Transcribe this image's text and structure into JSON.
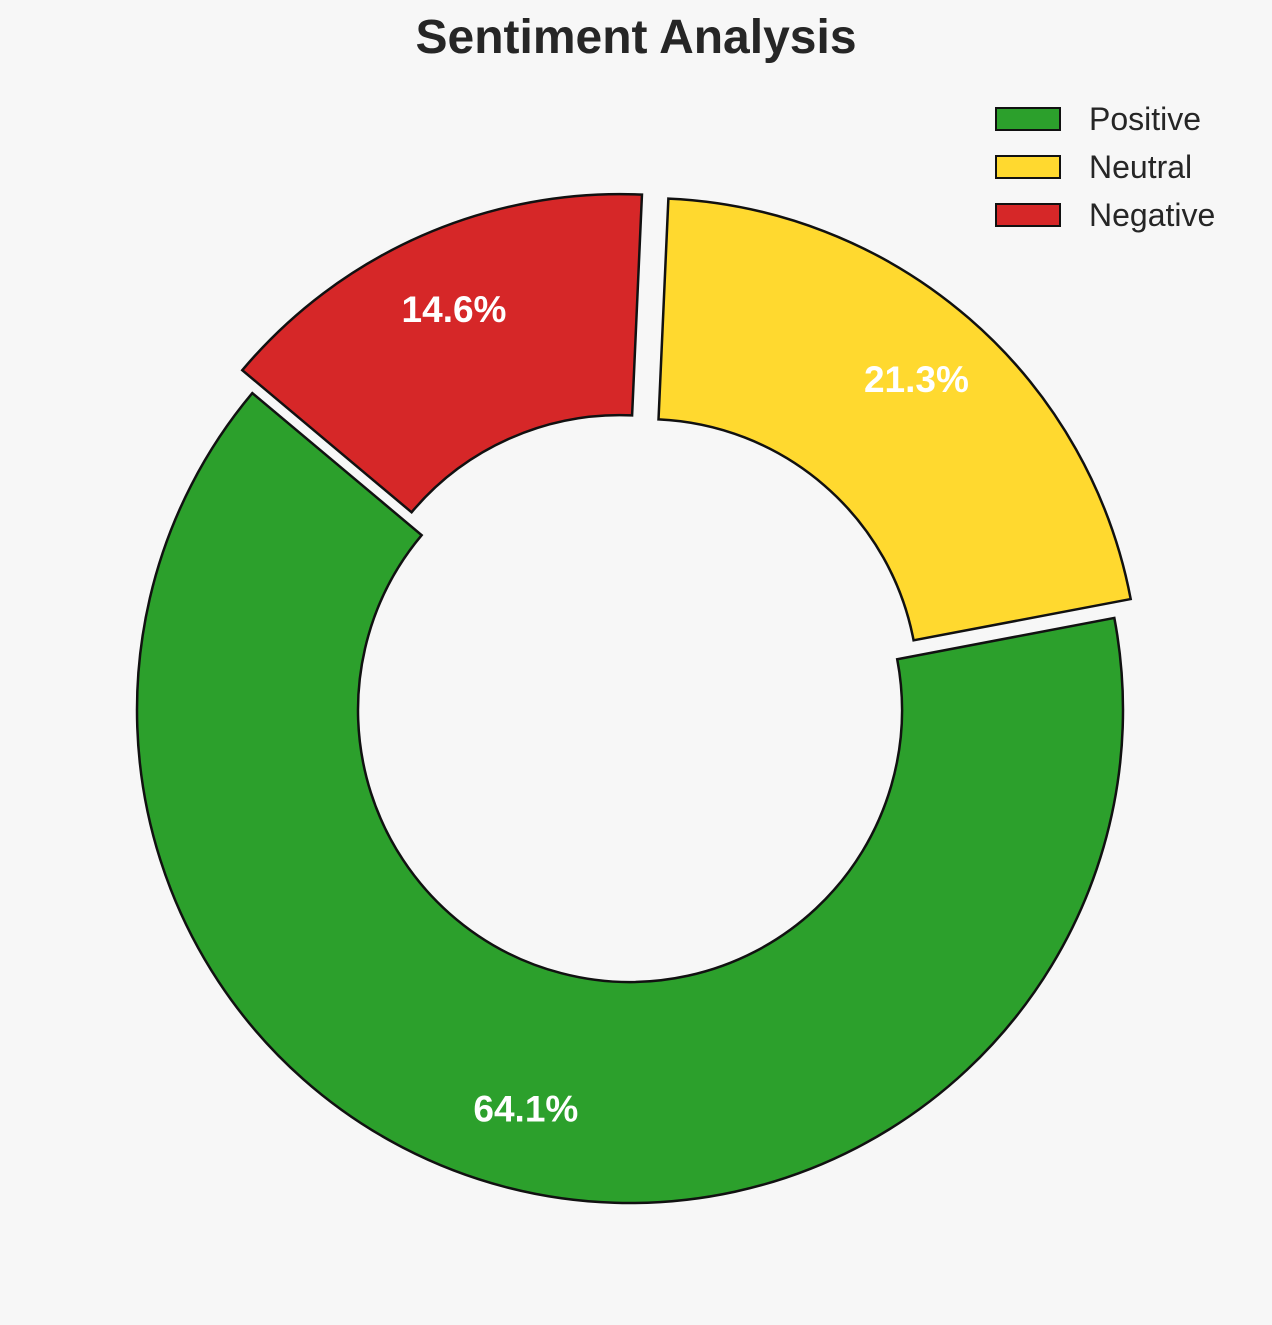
{
  "chart_data": {
    "type": "pie",
    "variant": "donut",
    "title": "Sentiment Analysis",
    "categories": [
      "Positive",
      "Neutral",
      "Negative"
    ],
    "values": [
      64.1,
      21.3,
      14.6
    ],
    "value_labels": [
      "64.1%",
      "21.3%",
      "14.6%"
    ],
    "colors": [
      "#2ca02c",
      "#ffd92f",
      "#d62728"
    ],
    "exploded": [
      false,
      true,
      true
    ],
    "start_angle_deg": 140,
    "direction": "counterclockwise",
    "legend_position": "top-right"
  }
}
